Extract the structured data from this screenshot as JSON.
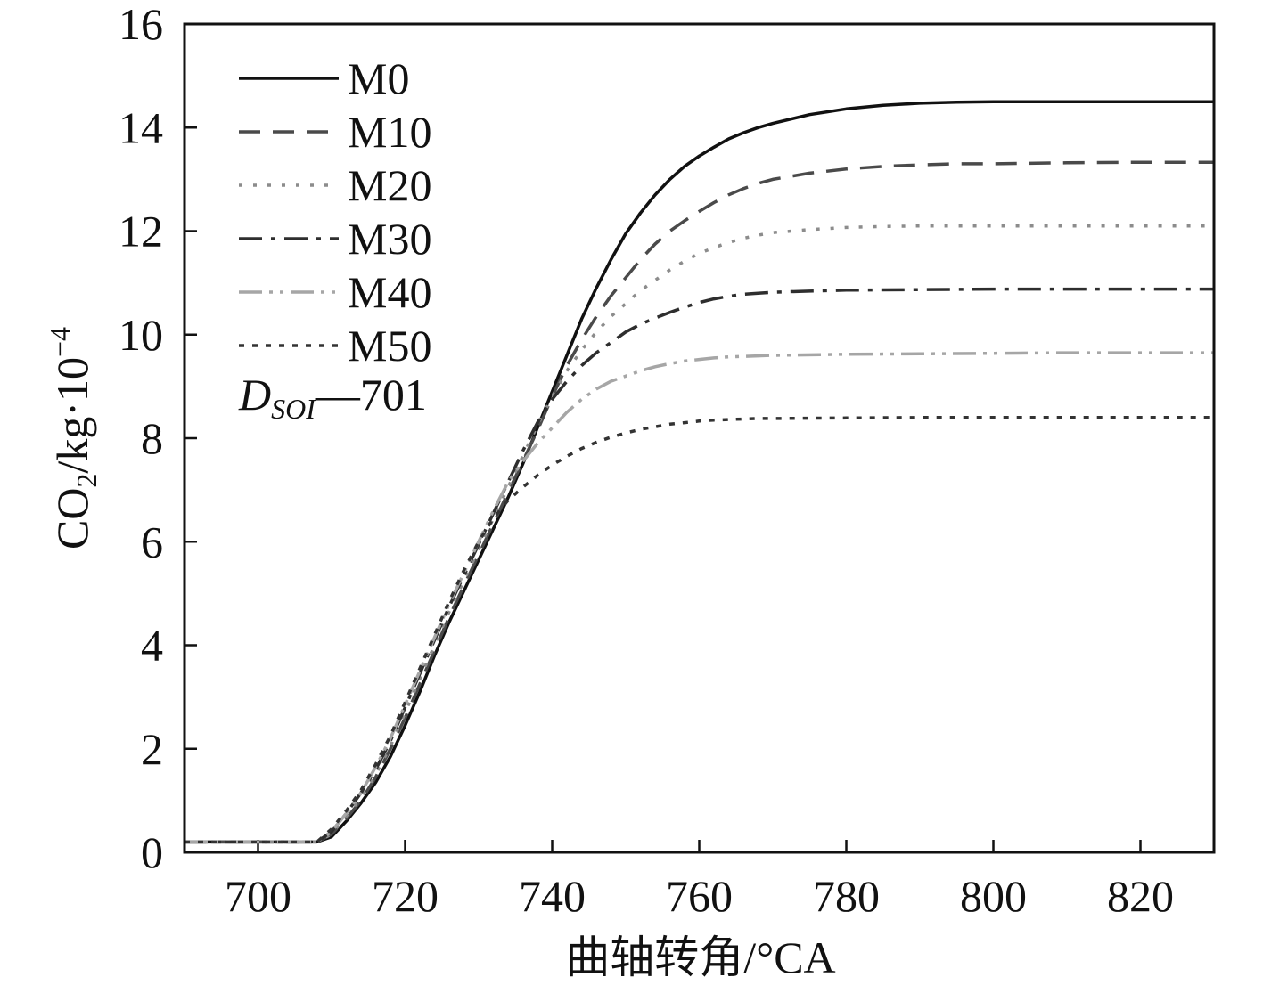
{
  "chart_data": {
    "type": "line",
    "title": "",
    "xlabel": "曲轴转角/°CA",
    "ylabel": {
      "prefix": "CO",
      "subscript": "2",
      "middle": "/kg·10",
      "superscript": "−4"
    },
    "xlim": [
      690,
      830
    ],
    "ylim": [
      0,
      16
    ],
    "xticks": [
      700,
      720,
      740,
      760,
      780,
      800,
      820
    ],
    "yticks": [
      0,
      2,
      4,
      6,
      8,
      10,
      12,
      14,
      16
    ],
    "grid": false,
    "legend_position": "top-left",
    "annotation": {
      "main": "D",
      "subscript": "SOI",
      "suffix": "—701"
    },
    "series": [
      {
        "name": "M0",
        "color": "#111111",
        "dash": "",
        "x": [
          690,
          708,
          710,
          712,
          714,
          716,
          718,
          720,
          722,
          724,
          726,
          728,
          730,
          732,
          734,
          736,
          738,
          740,
          742,
          744,
          746,
          748,
          750,
          752,
          754,
          756,
          758,
          760,
          762,
          764,
          766,
          768,
          770,
          775,
          780,
          785,
          790,
          795,
          800,
          810,
          820,
          830
        ],
        "y": [
          0.2,
          0.2,
          0.3,
          0.6,
          0.95,
          1.35,
          1.85,
          2.45,
          3.1,
          3.8,
          4.45,
          5.05,
          5.65,
          6.25,
          6.85,
          7.5,
          8.2,
          8.9,
          9.6,
          10.3,
          10.9,
          11.45,
          11.95,
          12.35,
          12.7,
          13.0,
          13.25,
          13.45,
          13.62,
          13.78,
          13.9,
          14.0,
          14.08,
          14.25,
          14.36,
          14.43,
          14.47,
          14.49,
          14.5,
          14.5,
          14.5,
          14.5
        ]
      },
      {
        "name": "M10",
        "color": "#4a4a4a",
        "dash": "24 14",
        "x": [
          690,
          708,
          710,
          712,
          714,
          716,
          718,
          720,
          722,
          724,
          726,
          728,
          730,
          732,
          734,
          736,
          738,
          740,
          742,
          744,
          746,
          748,
          750,
          752,
          754,
          756,
          758,
          760,
          762,
          764,
          766,
          768,
          770,
          775,
          780,
          785,
          790,
          795,
          800,
          810,
          820,
          830
        ],
        "y": [
          0.2,
          0.2,
          0.35,
          0.65,
          1.0,
          1.45,
          2.0,
          2.6,
          3.25,
          3.9,
          4.55,
          5.15,
          5.75,
          6.35,
          6.95,
          7.55,
          8.15,
          8.8,
          9.4,
          9.9,
          10.35,
          10.75,
          11.1,
          11.45,
          11.75,
          12.0,
          12.2,
          12.38,
          12.55,
          12.7,
          12.82,
          12.92,
          13.0,
          13.12,
          13.2,
          13.25,
          13.28,
          13.3,
          13.3,
          13.32,
          13.33,
          13.33
        ]
      },
      {
        "name": "M20",
        "color": "#8c8c8c",
        "dash": "4 12",
        "x": [
          690,
          708,
          710,
          712,
          714,
          716,
          718,
          720,
          722,
          724,
          726,
          728,
          730,
          732,
          734,
          736,
          738,
          740,
          742,
          744,
          746,
          748,
          750,
          752,
          754,
          756,
          758,
          760,
          762,
          764,
          766,
          768,
          770,
          775,
          780,
          785,
          790,
          800,
          810,
          820,
          830
        ],
        "y": [
          0.2,
          0.2,
          0.35,
          0.7,
          1.05,
          1.5,
          2.05,
          2.7,
          3.35,
          4.0,
          4.65,
          5.25,
          5.85,
          6.45,
          7.05,
          7.65,
          8.25,
          8.8,
          9.3,
          9.7,
          10.05,
          10.35,
          10.6,
          10.85,
          11.05,
          11.25,
          11.42,
          11.57,
          11.68,
          11.78,
          11.86,
          11.92,
          11.97,
          12.03,
          12.07,
          12.09,
          12.1,
          12.1,
          12.1,
          12.1,
          12.1
        ]
      },
      {
        "name": "M30",
        "color": "#2e2e2e",
        "dash": "26 10 5 10",
        "x": [
          690,
          708,
          710,
          712,
          714,
          716,
          718,
          720,
          722,
          724,
          726,
          728,
          730,
          732,
          734,
          736,
          738,
          740,
          742,
          744,
          746,
          748,
          750,
          752,
          754,
          756,
          758,
          760,
          762,
          764,
          766,
          768,
          770,
          775,
          780,
          790,
          800,
          810,
          820,
          830
        ],
        "y": [
          0.2,
          0.2,
          0.4,
          0.75,
          1.15,
          1.6,
          2.15,
          2.8,
          3.45,
          4.1,
          4.75,
          5.35,
          5.95,
          6.55,
          7.15,
          7.75,
          8.3,
          8.75,
          9.1,
          9.4,
          9.65,
          9.85,
          10.05,
          10.2,
          10.32,
          10.43,
          10.53,
          10.62,
          10.69,
          10.74,
          10.78,
          10.8,
          10.82,
          10.84,
          10.86,
          10.87,
          10.88,
          10.88,
          10.88,
          10.88
        ]
      },
      {
        "name": "M40",
        "color": "#a6a6a6",
        "dash": "26 8 4 8 4 8",
        "x": [
          690,
          708,
          710,
          712,
          714,
          716,
          718,
          720,
          722,
          724,
          726,
          728,
          730,
          732,
          734,
          736,
          738,
          740,
          742,
          744,
          746,
          748,
          750,
          752,
          754,
          756,
          758,
          760,
          762,
          764,
          766,
          768,
          770,
          780,
          790,
          800,
          810,
          820,
          830
        ],
        "y": [
          0.2,
          0.2,
          0.4,
          0.75,
          1.15,
          1.65,
          2.2,
          2.85,
          3.5,
          4.15,
          4.8,
          5.4,
          6.0,
          6.6,
          7.15,
          7.55,
          7.9,
          8.2,
          8.5,
          8.75,
          8.95,
          9.1,
          9.2,
          9.3,
          9.38,
          9.44,
          9.49,
          9.52,
          9.55,
          9.57,
          9.58,
          9.59,
          9.6,
          9.62,
          9.63,
          9.64,
          9.65,
          9.65,
          9.65
        ]
      },
      {
        "name": "M50",
        "color": "#333333",
        "dash": "6 9",
        "x": [
          690,
          708,
          710,
          712,
          714,
          716,
          718,
          720,
          722,
          724,
          726,
          728,
          730,
          732,
          734,
          736,
          738,
          740,
          742,
          744,
          746,
          748,
          750,
          752,
          754,
          756,
          758,
          760,
          762,
          764,
          766,
          768,
          770,
          780,
          790,
          800,
          810,
          820,
          830
        ],
        "y": [
          0.2,
          0.2,
          0.45,
          0.8,
          1.2,
          1.7,
          2.25,
          2.9,
          3.55,
          4.2,
          4.85,
          5.45,
          6.0,
          6.45,
          6.8,
          7.05,
          7.28,
          7.48,
          7.65,
          7.8,
          7.92,
          8.02,
          8.1,
          8.17,
          8.22,
          8.27,
          8.3,
          8.33,
          8.35,
          8.36,
          8.37,
          8.38,
          8.38,
          8.39,
          8.4,
          8.4,
          8.4,
          8.4,
          8.4
        ]
      }
    ]
  }
}
